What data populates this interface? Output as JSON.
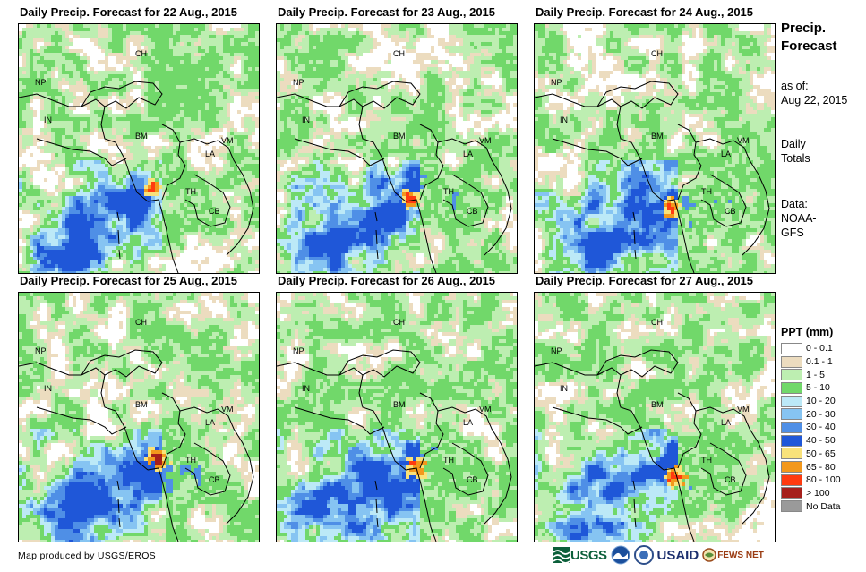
{
  "colors": {
    "background": "#ffffff",
    "ppt_0_01": "#ffffff",
    "ppt_01_1": "#ecdcbf",
    "ppt_1_5": "#bdeeb1",
    "ppt_5_10": "#71d86a",
    "ppt_10_20": "#bce9f7",
    "ppt_20_30": "#86c4f2",
    "ppt_30_40": "#4f8fe6",
    "ppt_40_50": "#1f57d8",
    "ppt_50_65": "#f9e27a",
    "ppt_65_80": "#f3981c",
    "ppt_80_100": "#ff3b10",
    "ppt_gt100": "#a61f1b",
    "no_data": "#9a9a9a"
  },
  "panels": [
    {
      "title": "Daily Precip. Forecast for 22 Aug., 2015",
      "day": 22
    },
    {
      "title": "Daily Precip. Forecast for 23 Aug., 2015",
      "day": 23
    },
    {
      "title": "Daily Precip. Forecast for 24 Aug., 2015",
      "day": 24
    },
    {
      "title": "Daily Precip. Forecast for 25 Aug., 2015",
      "day": 25
    },
    {
      "title": "Daily Precip. Forecast for 26 Aug., 2015",
      "day": 26
    },
    {
      "title": "Daily Precip. Forecast for 27 Aug., 2015",
      "day": 27
    }
  ],
  "country_labels": [
    "CH",
    "NP",
    "IN",
    "BM",
    "LA",
    "VM",
    "TH",
    "CB"
  ],
  "sidebar": {
    "title_line1": "Precip.",
    "title_line2": "Forecast",
    "asof_line1": "as of:",
    "asof_line2": "Aug 22, 2015",
    "totals_line1": "Daily",
    "totals_line2": "Totals",
    "data_line1": "Data:",
    "data_line2": "NOAA-",
    "data_line3": "GFS"
  },
  "legend": {
    "title": "PPT (mm)",
    "items": [
      {
        "label": "0 - 0.1",
        "color": "#ffffff"
      },
      {
        "label": "0.1 - 1",
        "color": "#ecdcbf"
      },
      {
        "label": "1 - 5",
        "color": "#bdeeb1"
      },
      {
        "label": "5 - 10",
        "color": "#71d86a"
      },
      {
        "label": "10 - 20",
        "color": "#bce9f7"
      },
      {
        "label": "20 - 30",
        "color": "#86c4f2"
      },
      {
        "label": "30 - 40",
        "color": "#4f8fe6"
      },
      {
        "label": "40 - 50",
        "color": "#1f57d8"
      },
      {
        "label": "50 - 65",
        "color": "#f9e27a"
      },
      {
        "label": "65 - 80",
        "color": "#f3981c"
      },
      {
        "label": "80 - 100",
        "color": "#ff3b10"
      },
      {
        "label": "> 100",
        "color": "#a61f1b"
      },
      {
        "label": "No Data",
        "color": "#9a9a9a"
      }
    ]
  },
  "footer": "Map produced by USGS/EROS",
  "logos": {
    "usgs": "USGS",
    "usaid": "USAID",
    "fewsnet": "FEWS NET"
  }
}
